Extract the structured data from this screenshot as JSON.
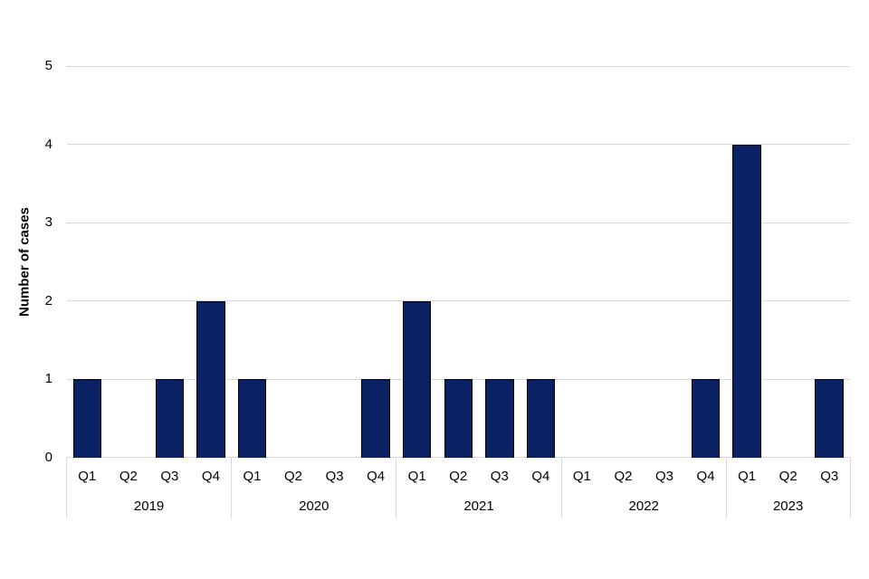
{
  "chart_data": {
    "type": "bar",
    "title": "",
    "xlabel": "",
    "ylabel": "Number of cases",
    "ylim": [
      0,
      5
    ],
    "yticks": [
      "0",
      "1",
      "2",
      "3",
      "4",
      "5"
    ],
    "grid": "horizontal",
    "legend": "none",
    "bar_color": "#0A2164",
    "bar_border_color": "#000000",
    "grid_color": "#D9D9D9",
    "text_color": "#000000",
    "groups": [
      {
        "year": "2019",
        "quarters": [
          "Q1",
          "Q2",
          "Q3",
          "Q4"
        ],
        "values": [
          1,
          0,
          1,
          2
        ]
      },
      {
        "year": "2020",
        "quarters": [
          "Q1",
          "Q2",
          "Q3",
          "Q4"
        ],
        "values": [
          1,
          0,
          0,
          1
        ]
      },
      {
        "year": "2021",
        "quarters": [
          "Q1",
          "Q2",
          "Q3",
          "Q4"
        ],
        "values": [
          2,
          1,
          1,
          1
        ]
      },
      {
        "year": "2022",
        "quarters": [
          "Q1",
          "Q2",
          "Q3",
          "Q4"
        ],
        "values": [
          0,
          0,
          0,
          1
        ]
      },
      {
        "year": "2023",
        "quarters": [
          "Q1",
          "Q2",
          "Q3"
        ],
        "values": [
          4,
          0,
          1
        ]
      }
    ]
  }
}
